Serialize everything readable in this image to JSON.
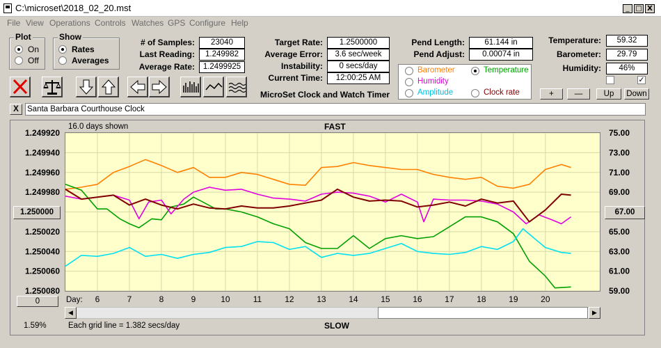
{
  "window": {
    "title": "C:\\microset\\2018_02_20.mst",
    "minimize": "_",
    "maximize": "□",
    "close": "X"
  },
  "menu": [
    "File",
    "View",
    "Operations",
    "Controls",
    "Watches",
    "GPS",
    "Configure",
    "Help"
  ],
  "plot_group": {
    "title": "Plot",
    "options": [
      "On",
      "Off"
    ],
    "selected": "On"
  },
  "show_group": {
    "title": "Show",
    "options": [
      "Rates",
      "Averages"
    ],
    "selected": "Rates"
  },
  "stats": [
    {
      "label": "# of Samples:",
      "value": "23040"
    },
    {
      "label": "Last Reading:",
      "value": "1.249982"
    },
    {
      "label": "Average Rate:",
      "value": "1.2499925"
    }
  ],
  "rates": [
    {
      "label": "Target Rate:",
      "value": "1.2500000"
    },
    {
      "label": "Average Error:",
      "value": "3.6 sec/week"
    },
    {
      "label": "Instability:",
      "value": "0 secs/day"
    },
    {
      "label": "Current Time:",
      "value": "12:00:25 AM"
    }
  ],
  "footer_title": "MicroSet Clock and Watch Timer",
  "pend": [
    {
      "label": "Pend Length:",
      "value": "61.144 in"
    },
    {
      "label": "Pend Adjust:",
      "value": "0.00074 in"
    }
  ],
  "env": [
    {
      "label": "Temperature:",
      "value": "59.32"
    },
    {
      "label": "Barometer:",
      "value": "29.79"
    },
    {
      "label": "Humidity:",
      "value": "46%"
    }
  ],
  "checks": {
    "left": "",
    "right": "✓"
  },
  "sensor_options": [
    {
      "label": "Barometer",
      "color": "#ff8000",
      "selected": false
    },
    {
      "label": "Temperature",
      "color": "#00a000",
      "selected": true
    },
    {
      "label": "Humidity",
      "color": "#e000e0",
      "selected": false
    },
    {
      "label": "Amplitude",
      "color": "#00c0e0",
      "selected": false
    },
    {
      "label": "Clock rate",
      "color": "#800000",
      "selected": false
    }
  ],
  "scale_buttons": [
    "+",
    "—",
    "Up",
    "Down"
  ],
  "clock_name": "Santa Barbara Courthouse Clock",
  "clock_close": "X",
  "chart_header": {
    "days_shown": "16.0 days shown",
    "top_label": "FAST",
    "bottom_label": "SLOW",
    "grid_note": "Each grid line = 1.382 secs/day",
    "percent": "1.59%",
    "day_label": "Day:",
    "left_button": "0",
    "center_left": "1.250000",
    "center_right": "67.00"
  },
  "chart_data": {
    "type": "line",
    "x_label": "Day:",
    "x_ticks": [
      6,
      7,
      8,
      9,
      10,
      11,
      12,
      13,
      14,
      15,
      16,
      17,
      18,
      19,
      20
    ],
    "xlim": [
      5,
      21.7
    ],
    "y_left": {
      "ticks": [
        "1.249920",
        "1.249940",
        "1.249960",
        "1.249980",
        "1.250000",
        "1.250020",
        "1.250040",
        "1.250060",
        "1.250080"
      ],
      "lim": [
        1.24992,
        1.25008
      ]
    },
    "y_right": {
      "ticks": [
        "75.00",
        "73.00",
        "71.00",
        "69.00",
        "67.00",
        "65.00",
        "63.00",
        "61.00",
        "59.00"
      ],
      "lim": [
        59,
        75
      ]
    },
    "series": [
      {
        "color": "#ff8000",
        "axis": "right",
        "x": [
          5,
          5.5,
          6,
          6.5,
          7,
          7.5,
          8,
          8.5,
          9,
          9.5,
          10,
          10.5,
          11,
          11.5,
          12,
          12.5,
          13,
          13.5,
          14,
          14.5,
          15,
          15.5,
          16,
          16.5,
          17,
          17.5,
          18,
          18.5,
          19,
          19.5,
          20,
          20.5,
          20.8
        ],
        "y": [
          69.3,
          69.5,
          69.8,
          71,
          71.6,
          72.3,
          71.7,
          71,
          71.5,
          70.5,
          70.5,
          71,
          70.8,
          70.3,
          69.8,
          69.7,
          71.5,
          71.6,
          72,
          71.7,
          71.5,
          71.3,
          71.3,
          70.8,
          70.5,
          70.3,
          70.5,
          69.6,
          69.4,
          69.8,
          71.3,
          71.8,
          71.5
        ]
      },
      {
        "color": "#00a000",
        "axis": "right",
        "x": [
          5,
          5.5,
          6,
          6.3,
          6.7,
          7,
          7.3,
          7.7,
          8,
          8.3,
          8.7,
          9,
          9.3,
          9.7,
          10,
          10.5,
          11,
          11.5,
          12,
          12.5,
          13,
          13.5,
          14,
          14.5,
          15,
          15.5,
          16,
          16.5,
          17,
          17.5,
          18,
          18.5,
          19,
          19.5,
          20,
          20.3,
          20.8
        ],
        "y": [
          69.8,
          69.2,
          67.3,
          67.3,
          66.3,
          65.8,
          65.4,
          66.3,
          66.2,
          67.5,
          67.8,
          68.5,
          68,
          67.3,
          67.3,
          67,
          66.5,
          65.8,
          65.3,
          63.9,
          63.3,
          63.3,
          64.6,
          63.3,
          64.3,
          64.6,
          64.3,
          64.5,
          65.5,
          66.5,
          66.5,
          66,
          64.8,
          62,
          60.5,
          59.3,
          59.4
        ]
      },
      {
        "color": "#e000e0",
        "axis": "right",
        "x": [
          5,
          5.5,
          6,
          6.5,
          7,
          7.3,
          7.6,
          8,
          8.3,
          8.7,
          9,
          9.5,
          10,
          10.5,
          11,
          11.5,
          12,
          12.5,
          13,
          13.5,
          14,
          14.5,
          15,
          15.5,
          16,
          16.2,
          16.5,
          17,
          17.5,
          18,
          18.5,
          19,
          19.4,
          19.8,
          20.2,
          20.5,
          20.8
        ],
        "y": [
          68.6,
          68.3,
          68.5,
          68.7,
          68.2,
          66.3,
          68,
          68.2,
          66.8,
          68.3,
          69,
          69.5,
          69.2,
          69.3,
          68.8,
          68.4,
          68.3,
          68.1,
          68.8,
          69,
          68.9,
          68.6,
          68,
          68.8,
          68,
          66,
          68.3,
          68.2,
          68.2,
          68.1,
          67.8,
          67,
          65.8,
          66.7,
          66.2,
          65.8,
          66.5
        ]
      },
      {
        "color": "#00e0f0",
        "axis": "right",
        "x": [
          5,
          5.5,
          6,
          6.5,
          7,
          7.5,
          8,
          8.5,
          9,
          9.5,
          10,
          10.5,
          11,
          11.5,
          12,
          12.5,
          13,
          13.5,
          14,
          14.5,
          15,
          15.5,
          16,
          16.5,
          17,
          17.5,
          18,
          18.5,
          19,
          19.3,
          19.7,
          20,
          20.5,
          20.8
        ],
        "y": [
          61.5,
          62.6,
          62.5,
          62.8,
          63.4,
          62.5,
          62.7,
          62.3,
          62.7,
          62.9,
          63.4,
          63.5,
          64,
          63.9,
          63.2,
          63.5,
          62.4,
          62.8,
          62.6,
          62.8,
          63.3,
          63.8,
          63,
          62.8,
          62.7,
          62.9,
          63.5,
          63.2,
          64,
          65.3,
          64.2,
          63.4,
          62.9,
          62.8
        ]
      },
      {
        "color": "#800000",
        "axis": "right",
        "x": [
          5,
          5.5,
          6,
          6.5,
          7,
          7.5,
          8,
          8.5,
          9,
          9.5,
          10,
          10.5,
          11,
          11.5,
          12,
          12.5,
          13,
          13.5,
          14,
          14.5,
          15,
          15.5,
          16,
          16.5,
          17,
          17.5,
          18,
          18.5,
          19,
          19.5,
          20,
          20.5,
          20.8
        ],
        "y": [
          69.3,
          68.3,
          68.5,
          68.7,
          67.7,
          68.3,
          67.7,
          67.3,
          67.8,
          67.4,
          67.3,
          67.6,
          67.4,
          67.4,
          67.6,
          67.9,
          68.2,
          69.3,
          68.5,
          68.1,
          68.2,
          68.1,
          67.5,
          67.7,
          68,
          67.6,
          68.3,
          67.9,
          68.1,
          66,
          67.2,
          68.8,
          68.7
        ]
      }
    ]
  }
}
